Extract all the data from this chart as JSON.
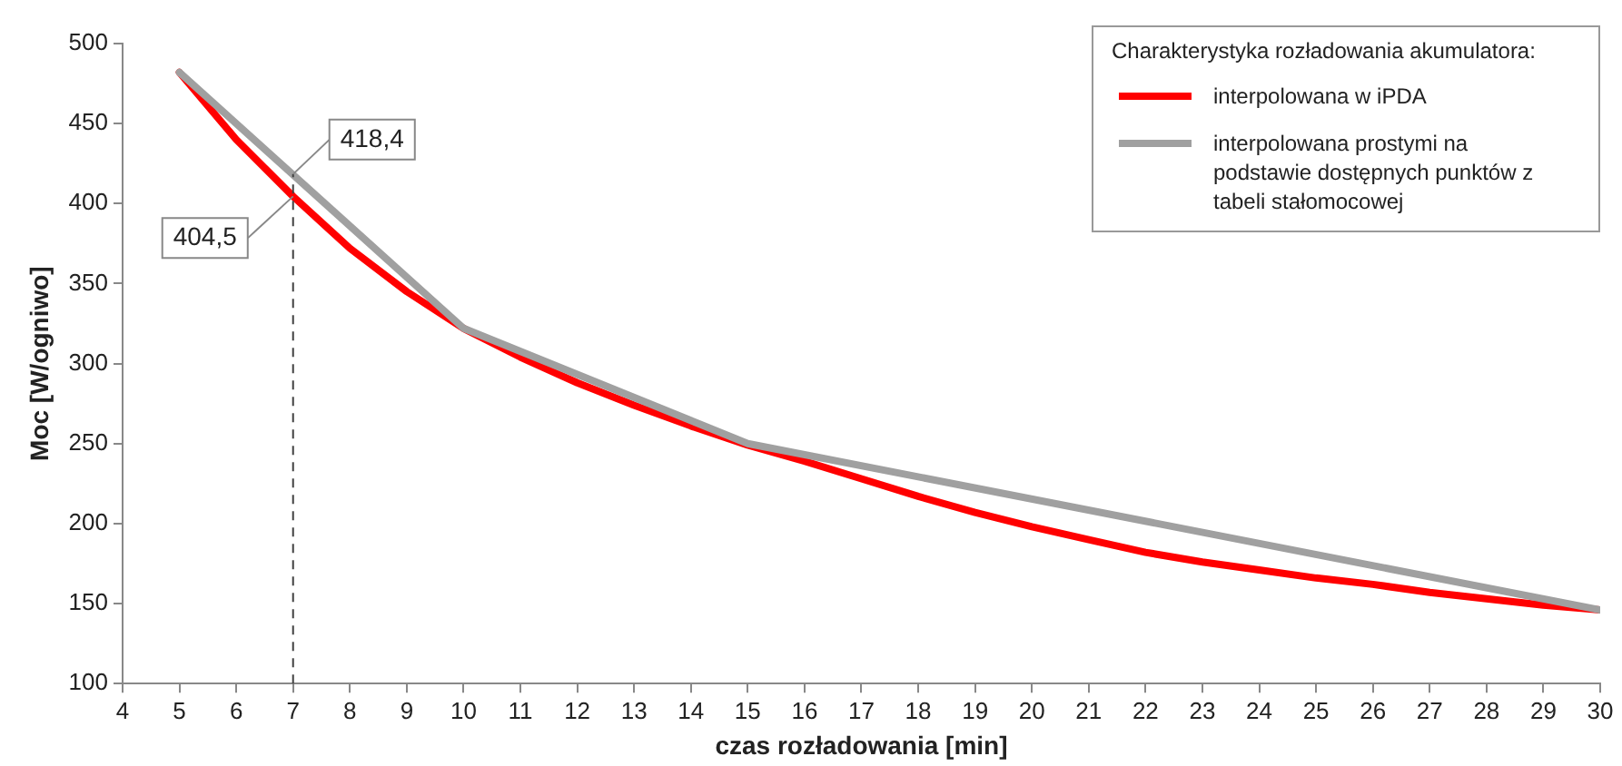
{
  "chart_data": {
    "type": "line",
    "xlabel": "czas rozładowania [min]",
    "ylabel": "Moc [W/ogniwo]",
    "legend_title": "Charakterystyka rozładowania akumulatora:",
    "legend": "top right",
    "grid": false,
    "marker": "none",
    "line_style": "solid",
    "xlim": [
      4,
      30
    ],
    "xticks": [
      4,
      5,
      6,
      7,
      8,
      9,
      10,
      11,
      12,
      13,
      14,
      15,
      16,
      17,
      18,
      19,
      20,
      21,
      22,
      23,
      24,
      25,
      26,
      27,
      28,
      29,
      30
    ],
    "ylim": [
      100,
      500
    ],
    "yticks": [
      100,
      150,
      200,
      250,
      300,
      350,
      400,
      450,
      500
    ],
    "series": [
      {
        "name": "interpolowana w iPDA",
        "color": "#ff0000",
        "x": [
          5,
          6,
          7,
          8,
          9,
          10,
          11,
          12,
          13,
          14,
          15,
          16,
          17,
          18,
          19,
          20,
          21,
          22,
          23,
          24,
          25,
          26,
          27,
          28,
          29,
          30
        ],
        "values": [
          482,
          440,
          404.5,
          372,
          345,
          322,
          304,
          288,
          274,
          261,
          249,
          239,
          228,
          217,
          207,
          198,
          190,
          182,
          176,
          171,
          166,
          162,
          157,
          153,
          149,
          146
        ]
      },
      {
        "name": "interpolowana prostymi na podstawie dostępnych punktów z tabeli stałomocowej",
        "color": "#a0a0a0",
        "x": [
          5,
          10,
          15,
          30
        ],
        "values": [
          482,
          322,
          250,
          146
        ]
      }
    ],
    "ref_lines": [
      {
        "axis": "x",
        "value": 7,
        "line_style": "dashed",
        "color": "#404040"
      }
    ],
    "annotations": [
      {
        "text": "418,4",
        "x": 7,
        "y": 418.4
      },
      {
        "text": "404,5",
        "x": 7,
        "y": 404.5
      }
    ]
  }
}
